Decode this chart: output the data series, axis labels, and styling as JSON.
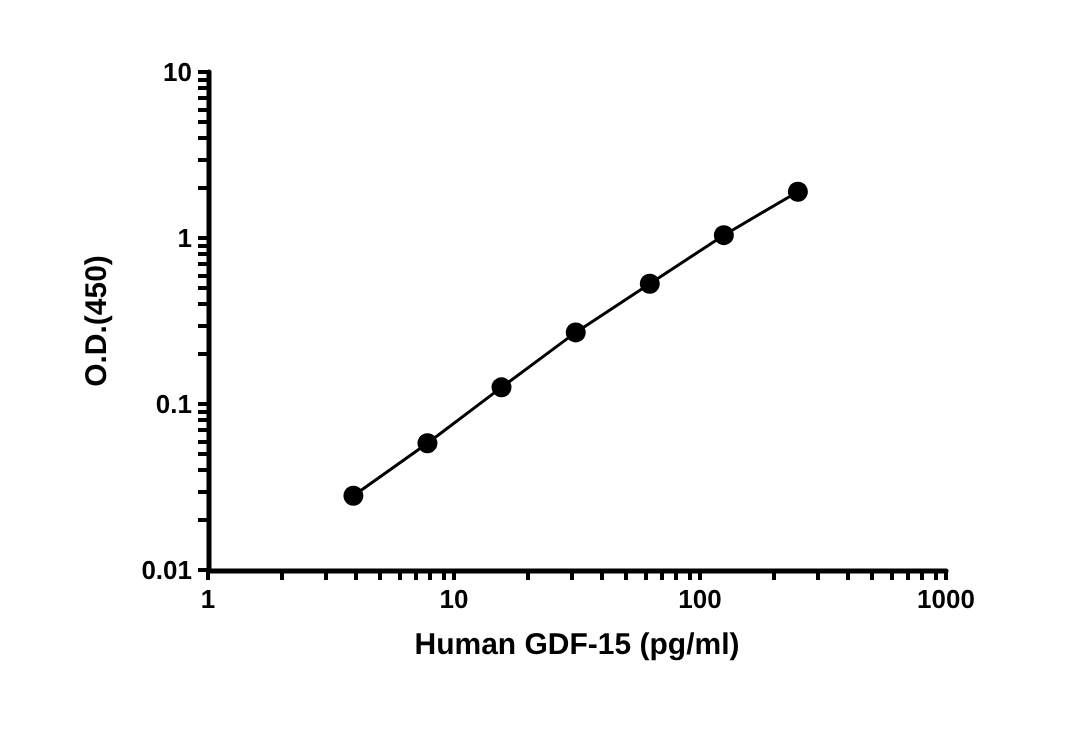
{
  "chart_data": {
    "type": "line",
    "xlabel": "Human GDF-15 (pg/ml)",
    "ylabel": "O.D.(450)",
    "x": [
      3.9,
      7.8,
      15.6,
      31.25,
      62.5,
      125,
      250
    ],
    "series": [
      {
        "color": "#000000",
        "values": [
          0.028,
          0.058,
          0.126,
          0.27,
          0.53,
          1.04,
          1.9
        ]
      }
    ],
    "log": "xy",
    "xlim": [
      1,
      1000
    ],
    "ylim": [
      0.01,
      10
    ],
    "xticks": [
      1,
      {
        "value": 2,
        "label": null
      },
      {
        "value": 3,
        "label": null
      },
      {
        "value": 4,
        "label": null
      },
      {
        "value": 5,
        "label": null
      },
      {
        "value": 6,
        "label": null
      },
      {
        "value": 7,
        "label": null
      },
      {
        "value": 8,
        "label": null
      },
      {
        "value": 9,
        "label": null
      },
      10,
      {
        "value": 20,
        "label": null
      },
      {
        "value": 30,
        "label": null
      },
      {
        "value": 40,
        "label": null
      },
      {
        "value": 50,
        "label": null
      },
      {
        "value": 60,
        "label": null
      },
      {
        "value": 70,
        "label": null
      },
      {
        "value": 80,
        "label": null
      },
      {
        "value": 90,
        "label": null
      },
      100,
      {
        "value": 200,
        "label": null
      },
      {
        "value": 300,
        "label": null
      },
      {
        "value": 400,
        "label": null
      },
      {
        "value": 500,
        "label": null
      },
      {
        "value": 600,
        "label": null
      },
      {
        "value": 700,
        "label": null
      },
      {
        "value": 800,
        "label": null
      },
      {
        "value": 900,
        "label": null
      },
      1000
    ],
    "yticks": [
      0.01,
      {
        "value": 0.02,
        "label": null
      },
      {
        "value": 0.03,
        "label": null
      },
      {
        "value": 0.04,
        "label": null
      },
      {
        "value": 0.05,
        "label": null
      },
      {
        "value": 0.06,
        "label": null
      },
      {
        "value": 0.07,
        "label": null
      },
      {
        "value": 0.08,
        "label": null
      },
      {
        "value": 0.09,
        "label": null
      },
      0.1,
      {
        "value": 0.2,
        "label": null
      },
      {
        "value": 0.3,
        "label": null
      },
      {
        "value": 0.4,
        "label": null
      },
      {
        "value": 0.5,
        "label": null
      },
      {
        "value": 0.6,
        "label": null
      },
      {
        "value": 0.7,
        "label": null
      },
      {
        "value": 0.8,
        "label": null
      },
      {
        "value": 0.9,
        "label": null
      },
      1,
      {
        "value": 2,
        "label": null
      },
      {
        "value": 3,
        "label": null
      },
      {
        "value": 4,
        "label": null
      },
      {
        "value": 5,
        "label": null
      },
      {
        "value": 6,
        "label": null
      },
      {
        "value": 7,
        "label": null
      },
      {
        "value": 8,
        "label": null
      },
      {
        "value": 9,
        "label": null
      },
      10
    ],
    "grid": false,
    "marker": "circle",
    "line_style": "solid"
  }
}
